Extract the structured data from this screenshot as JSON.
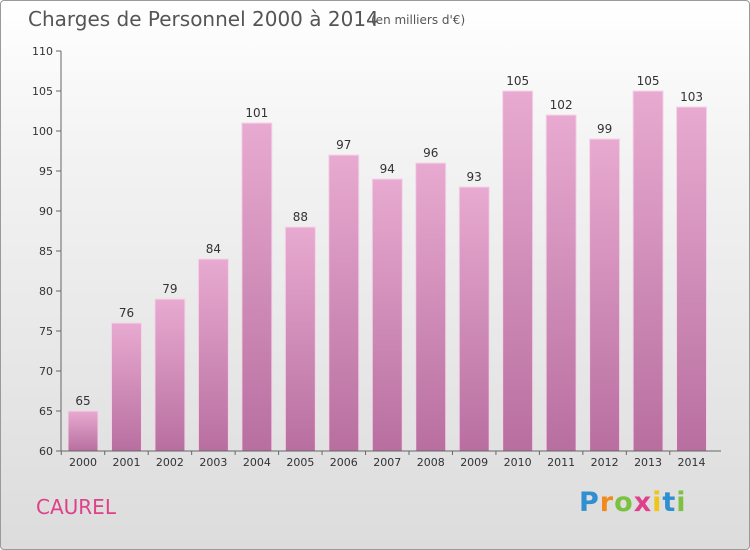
{
  "title": "Charges de Personnel 2000 à 2014",
  "unit_label": "(en milliers d'€)",
  "commune": "CAUREL",
  "logo": {
    "text": "Proxiti",
    "letters": [
      {
        "ch": "P",
        "color": "#2f8fd0"
      },
      {
        "ch": "r",
        "color": "#f08a1c"
      },
      {
        "ch": "o",
        "color": "#7cc242"
      },
      {
        "ch": "x",
        "color": "#e0408a"
      },
      {
        "ch": "i",
        "color": "#f0c419"
      },
      {
        "ch": "t",
        "color": "#2f8fd0"
      },
      {
        "ch": "i",
        "color": "#7cc242"
      }
    ]
  },
  "colors": {
    "bar_top": "#e8aad0",
    "bar_bottom": "#b86fa0",
    "bar_edge": "#f3d5e8",
    "axis": "#666666",
    "text": "#333333"
  },
  "chart_data": {
    "type": "bar",
    "categories": [
      "2000",
      "2001",
      "2002",
      "2003",
      "2004",
      "2005",
      "2006",
      "2007",
      "2008",
      "2009",
      "2010",
      "2011",
      "2012",
      "2013",
      "2014"
    ],
    "values": [
      65,
      76,
      79,
      84,
      101,
      88,
      97,
      94,
      96,
      93,
      105,
      102,
      99,
      105,
      103
    ],
    "ylim": [
      60,
      110
    ],
    "yticks": [
      60,
      65,
      70,
      75,
      80,
      85,
      90,
      95,
      100,
      105,
      110
    ],
    "grid": false
  }
}
